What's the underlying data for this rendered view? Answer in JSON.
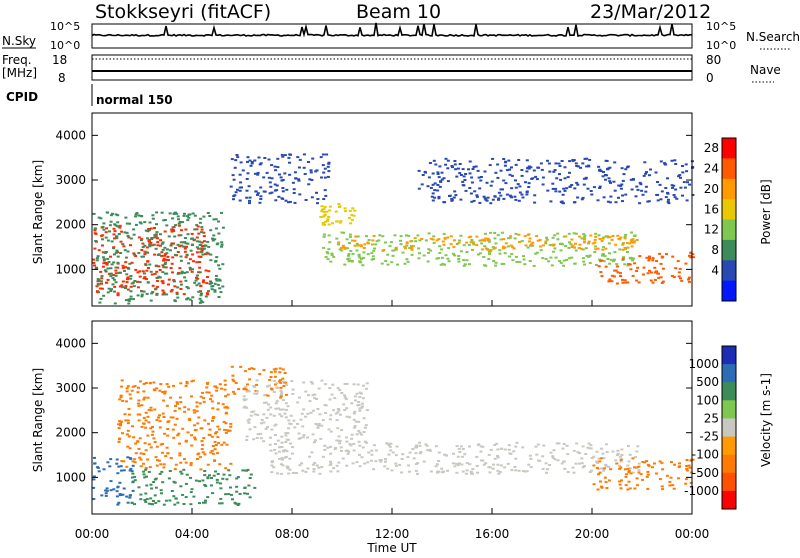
{
  "header": {
    "station": "Stokkseyri (fitACF)",
    "beam": "Beam 10",
    "date": "23/Mar/2012"
  },
  "noise_panel": {
    "left_label": "N.Sky",
    "left_ticks": [
      "10^5",
      "10^0"
    ],
    "right_ticks": [
      "10^5",
      "10^0"
    ],
    "right_label": "N.Search"
  },
  "freq_panel": {
    "left_label_1": "Freq.",
    "left_label_2": "[MHz]",
    "left_ticks": [
      "18",
      "8"
    ],
    "right_ticks": [
      "80",
      "0"
    ],
    "right_label": "Nave",
    "cpid_label": "CPID",
    "cpid_value": "normal 150"
  },
  "chart_data": [
    {
      "type": "heatmap",
      "name": "power",
      "ylabel": "Slant Range [km]",
      "yticks": [
        "4000",
        "3000",
        "2000",
        "1000"
      ],
      "ytick_values": [
        4000,
        3000,
        2000,
        1000
      ],
      "ylim": [
        180,
        4500
      ],
      "colorbar_label": "Power [dB]",
      "colorbar_ticks": [
        "28",
        "24",
        "20",
        "16",
        "12",
        "8",
        "4"
      ],
      "colorbar_colors": [
        "#ff0000",
        "#ff5a00",
        "#ff9a00",
        "#e8c800",
        "#7ec850",
        "#3c8c5a",
        "#2848b4",
        "#0018ff"
      ],
      "features": [
        {
          "t_start": 0.0,
          "t_end": 4.7,
          "r_start": 400,
          "r_end": 2000,
          "level": "high",
          "color": "#ff2a00"
        },
        {
          "t_start": 0.0,
          "t_end": 5.2,
          "r_start": 250,
          "r_end": 2300,
          "level": "medium",
          "color": "#3c8c5a"
        },
        {
          "t_start": 9.2,
          "t_end": 21.8,
          "r_start": 1100,
          "r_end": 1850,
          "level": "medium",
          "color": "#7ec850"
        },
        {
          "t_start": 9.6,
          "t_end": 21.8,
          "r_start": 1450,
          "r_end": 1800,
          "level": "high",
          "color": "#ff9a00"
        },
        {
          "t_start": 20.2,
          "t_end": 24.0,
          "r_start": 700,
          "r_end": 1400,
          "level": "high",
          "color": "#ff5a00"
        },
        {
          "t_start": 5.5,
          "t_end": 9.5,
          "r_start": 2500,
          "r_end": 3600,
          "level": "low",
          "color": "#2848b4"
        },
        {
          "t_start": 9.0,
          "t_end": 10.5,
          "r_start": 2000,
          "r_end": 2500,
          "level": "medium",
          "color": "#e8c800"
        },
        {
          "t_start": 13.0,
          "t_end": 24.0,
          "r_start": 2500,
          "r_end": 3500,
          "level": "low",
          "color": "#2848b4"
        }
      ]
    },
    {
      "type": "heatmap",
      "name": "velocity",
      "xlabel": "Time UT",
      "xticks": [
        "00:00",
        "04:00",
        "08:00",
        "12:00",
        "16:00",
        "20:00",
        "00:00"
      ],
      "xtick_values": [
        0,
        4,
        8,
        12,
        16,
        20,
        24
      ],
      "xlim": [
        0,
        24
      ],
      "ylabel": "Slant Range [km]",
      "yticks": [
        "4000",
        "3000",
        "2000",
        "1000"
      ],
      "ytick_values": [
        4000,
        3000,
        2000,
        1000
      ],
      "ylim": [
        180,
        4500
      ],
      "colorbar_label": "Velocity [m s-1]",
      "colorbar_ticks": [
        "1000",
        "500",
        "100",
        "25",
        "-25",
        "-100",
        "-500",
        "-1000"
      ],
      "colorbar_colors": [
        "#1c2cb4",
        "#2c6cb4",
        "#3c8c5a",
        "#7ec850",
        "#c8c8c0",
        "#ff9a00",
        "#ff7a00",
        "#ff5000",
        "#ff0000"
      ],
      "features": [
        {
          "t_start": 0.0,
          "t_end": 1.6,
          "r_start": 400,
          "r_end": 1500,
          "level": "positive",
          "color": "#2c6cb4"
        },
        {
          "t_start": 1.0,
          "t_end": 5.5,
          "r_start": 1200,
          "r_end": 3200,
          "level": "negative",
          "color": "#ff7a00"
        },
        {
          "t_start": 5.5,
          "t_end": 7.8,
          "r_start": 2800,
          "r_end": 3500,
          "level": "negative",
          "color": "#ff7a00"
        },
        {
          "t_start": 7.0,
          "t_end": 22.0,
          "r_start": 1100,
          "r_end": 1800,
          "level": "near-zero",
          "color": "#c8c8c0"
        },
        {
          "t_start": 20.0,
          "t_end": 24.0,
          "r_start": 750,
          "r_end": 1450,
          "level": "negative",
          "color": "#ff7a00"
        },
        {
          "t_start": 6.0,
          "t_end": 11.0,
          "r_start": 1800,
          "r_end": 3200,
          "level": "near-zero",
          "color": "#c8c8c0"
        },
        {
          "t_start": 1.5,
          "t_end": 6.5,
          "r_start": 400,
          "r_end": 1200,
          "level": "slightly-positive",
          "color": "#3c8c5a"
        }
      ]
    }
  ]
}
